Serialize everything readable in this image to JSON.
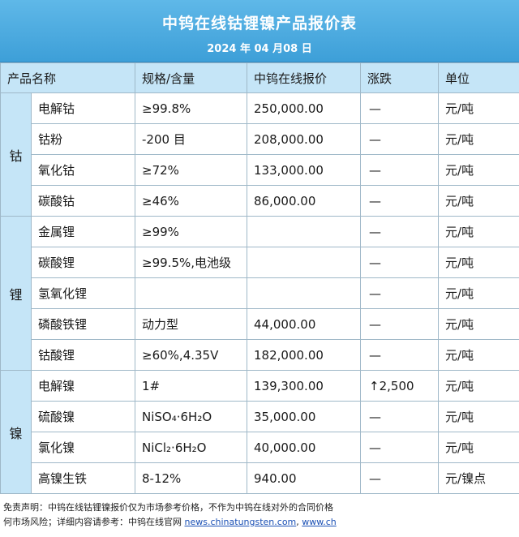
{
  "header": {
    "title": "中钨在线钴锂镍产品报价表",
    "date": "2024 年 04 月08 日"
  },
  "columns": [
    "产品名称",
    "规格/含量",
    "中钨在线报价",
    "涨跌",
    "单位"
  ],
  "groups": [
    {
      "name": "钴",
      "rows": [
        {
          "product": "电解钴",
          "spec": "≥99.8%",
          "price": "250,000.00",
          "change": "—",
          "unit": "元/吨"
        },
        {
          "product": "钴粉",
          "spec": "-200 目",
          "price": "208,000.00",
          "change": "—",
          "unit": "元/吨"
        },
        {
          "product": "氧化钴",
          "spec": "≥72%",
          "price": "133,000.00",
          "change": "—",
          "unit": "元/吨"
        },
        {
          "product": "碳酸钴",
          "spec": "≥46%",
          "price": "86,000.00",
          "change": "—",
          "unit": "元/吨"
        }
      ]
    },
    {
      "name": "锂",
      "rows": [
        {
          "product": "金属锂",
          "spec": "≥99%",
          "price": "",
          "change": "—",
          "unit": "元/吨"
        },
        {
          "product": "碳酸锂",
          "spec": "≥99.5%,电池级",
          "price": "",
          "change": "—",
          "unit": "元/吨"
        },
        {
          "product": "氢氧化锂",
          "spec": "",
          "price": "",
          "change": "—",
          "unit": "元/吨"
        },
        {
          "product": "磷酸铁锂",
          "spec": "动力型",
          "price": "44,000.00",
          "change": "—",
          "unit": "元/吨"
        },
        {
          "product": "钴酸锂",
          "spec": "≥60%,4.35V",
          "price": "182,000.00",
          "change": "—",
          "unit": "元/吨"
        }
      ]
    },
    {
      "name": "镍",
      "rows": [
        {
          "product": "电解镍",
          "spec": "1#",
          "price": "139,300.00",
          "change": "↑2,500",
          "unit": "元/吨"
        },
        {
          "product": "硫酸镍",
          "spec": "NiSO₄·6H₂O",
          "price": "35,000.00",
          "change": "—",
          "unit": "元/吨"
        },
        {
          "product": "氯化镍",
          "spec": "NiCl₂·6H₂O",
          "price": "40,000.00",
          "change": "—",
          "unit": "元/吨"
        },
        {
          "product": "高镍生铁",
          "spec": "8-12%",
          "price": "940.00",
          "change": "—",
          "unit": "元/镍点"
        }
      ]
    }
  ],
  "footer": {
    "line1": "免责声明：中钨在线钴锂镍报价仅为市场参考价格，不作为中钨在线对外的合同价格",
    "line2_prefix": "何市场风险；详细内容请参考：中钨在线官网",
    "link1": "news.chinatungsten.com",
    "link2": "www.ch"
  }
}
